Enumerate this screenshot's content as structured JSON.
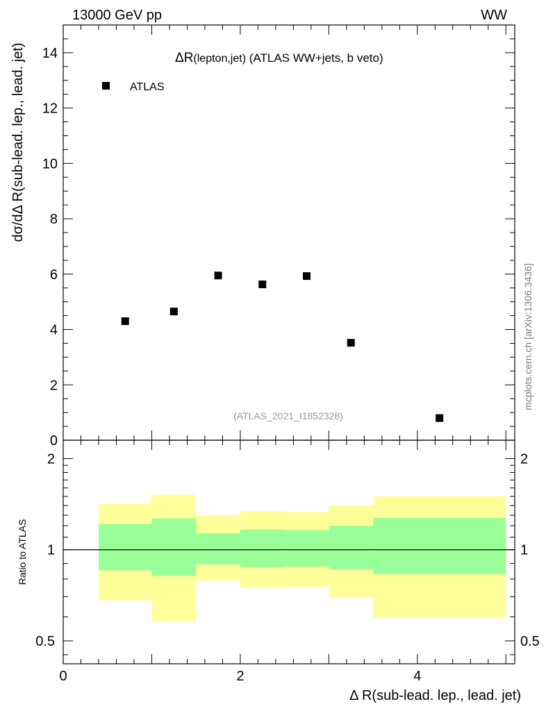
{
  "header": {
    "left": "13000 GeV pp",
    "right": "WW"
  },
  "watermark": "mcplots.cern.ch [arXiv:1306.3436]",
  "colors": {
    "band_inner": "#99ff99",
    "band_outer": "#ffff99",
    "marker": "#000000",
    "ref_line": "#000000"
  },
  "chart_data": [
    {
      "type": "scatter",
      "panel": "main",
      "title_prefix": "ΔR",
      "title_sub": "(lepton,jet)",
      "title_rest": " (ATLAS WW+jets, b veto)",
      "ylabel": "dσ/dΔ R(sub-lead. lep., lead. jet)",
      "analysis_tag": "(ATLAS_2021_I1852328)",
      "legend": [
        {
          "name": "ATLAS",
          "marker": "square"
        }
      ],
      "legend_position": "top-left",
      "xlim": [
        0,
        5.1
      ],
      "ylim": [
        0,
        15
      ],
      "yticks": [
        0,
        2,
        4,
        6,
        8,
        10,
        12,
        14
      ],
      "yticklabels": [
        "0",
        "2",
        "4",
        "6",
        "8",
        "10",
        "12",
        "14"
      ],
      "series": [
        {
          "name": "ATLAS",
          "x": [
            0.7,
            1.25,
            1.75,
            2.25,
            2.75,
            3.25,
            4.25
          ],
          "y": [
            4.3,
            4.65,
            5.95,
            5.63,
            5.93,
            3.52,
            0.8
          ]
        }
      ]
    },
    {
      "type": "area",
      "panel": "ratio",
      "ylabel": "Ratio to ATLAS",
      "xlabel": "Δ R(sub-lead. lep., lead. jet)",
      "xlim": [
        0,
        5.1
      ],
      "ylim": [
        0.42,
        2.3
      ],
      "yscale": "log",
      "xticks": [
        0,
        2,
        4
      ],
      "xticklabels": [
        "0",
        "2",
        "4"
      ],
      "yticks": [
        0.5,
        1,
        2
      ],
      "yticklabels": [
        "0.5",
        "1",
        "2"
      ],
      "reference_line": 1,
      "bins": [
        {
          "lo": 0.4,
          "hi": 1.0,
          "inner": [
            0.855,
            1.215
          ],
          "outer": [
            0.68,
            1.42
          ]
        },
        {
          "lo": 1.0,
          "hi": 1.5,
          "inner": [
            0.82,
            1.27
          ],
          "outer": [
            0.58,
            1.52
          ]
        },
        {
          "lo": 1.5,
          "hi": 2.0,
          "inner": [
            0.895,
            1.135
          ],
          "outer": [
            0.79,
            1.3
          ]
        },
        {
          "lo": 2.0,
          "hi": 2.5,
          "inner": [
            0.875,
            1.165
          ],
          "outer": [
            0.75,
            1.34
          ]
        },
        {
          "lo": 2.5,
          "hi": 3.0,
          "inner": [
            0.88,
            1.16
          ],
          "outer": [
            0.755,
            1.33
          ]
        },
        {
          "lo": 3.0,
          "hi": 3.5,
          "inner": [
            0.86,
            1.2
          ],
          "outer": [
            0.695,
            1.4
          ]
        },
        {
          "lo": 3.5,
          "hi": 5.0,
          "inner": [
            0.83,
            1.275
          ],
          "outer": [
            0.595,
            1.5
          ]
        }
      ]
    }
  ]
}
